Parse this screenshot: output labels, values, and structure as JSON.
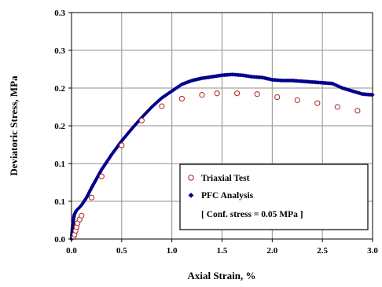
{
  "chart_data": {
    "type": "scatter",
    "xlabel": "Axial Strain, %",
    "ylabel": "Deviatoric Stress, MPa",
    "xlim": [
      0,
      3.0
    ],
    "ylim": [
      0,
      0.3
    ],
    "x_ticks": [
      0,
      0.5,
      1.0,
      1.5,
      2.0,
      2.5,
      3.0
    ],
    "x_tick_labels": [
      "0.0",
      "0.5",
      "1.0",
      "1.5",
      "2.0",
      "2.5",
      "3.0"
    ],
    "y_ticks": [
      0,
      0.05,
      0.1,
      0.15,
      0.2,
      0.25,
      0.3
    ],
    "y_tick_labels": [
      "0.0",
      "0.1",
      "0.1",
      "0.2",
      "0.2",
      "0.3",
      "0.3"
    ],
    "grid": true,
    "legend_placement": "bottom-right",
    "series": [
      {
        "name": "Triaxial Test",
        "marker": "open-circle",
        "color": "#b22222",
        "x": [
          0.02,
          0.03,
          0.04,
          0.05,
          0.06,
          0.08,
          0.1,
          0.2,
          0.3,
          0.5,
          0.7,
          0.9,
          1.1,
          1.3,
          1.45,
          1.65,
          1.85,
          2.05,
          2.25,
          2.45,
          2.65,
          2.85
        ],
        "y": [
          0.003,
          0.006,
          0.011,
          0.016,
          0.021,
          0.026,
          0.031,
          0.055,
          0.083,
          0.124,
          0.157,
          0.176,
          0.186,
          0.191,
          0.193,
          0.193,
          0.192,
          0.188,
          0.184,
          0.18,
          0.175,
          0.17
        ]
      },
      {
        "name": "PFC Analysis",
        "marker": "filled-diamond",
        "color": "#00008b",
        "x": [
          0.0,
          0.01,
          0.02,
          0.03,
          0.05,
          0.08,
          0.1,
          0.15,
          0.2,
          0.25,
          0.3,
          0.4,
          0.5,
          0.6,
          0.7,
          0.8,
          0.9,
          1.0,
          1.1,
          1.2,
          1.3,
          1.4,
          1.5,
          1.6,
          1.7,
          1.8,
          1.9,
          2.0,
          2.1,
          2.2,
          2.3,
          2.4,
          2.5,
          2.6,
          2.7,
          2.8,
          2.9,
          3.0
        ],
        "y": [
          0.0,
          0.015,
          0.027,
          0.033,
          0.038,
          0.042,
          0.045,
          0.055,
          0.068,
          0.08,
          0.092,
          0.112,
          0.13,
          0.146,
          0.161,
          0.175,
          0.187,
          0.196,
          0.205,
          0.21,
          0.213,
          0.215,
          0.217,
          0.218,
          0.217,
          0.215,
          0.214,
          0.211,
          0.21,
          0.21,
          0.209,
          0.208,
          0.207,
          0.206,
          0.2,
          0.196,
          0.192,
          0.191
        ]
      }
    ],
    "annotation": "[ Conf. stress = 0.05 MPa ]"
  }
}
